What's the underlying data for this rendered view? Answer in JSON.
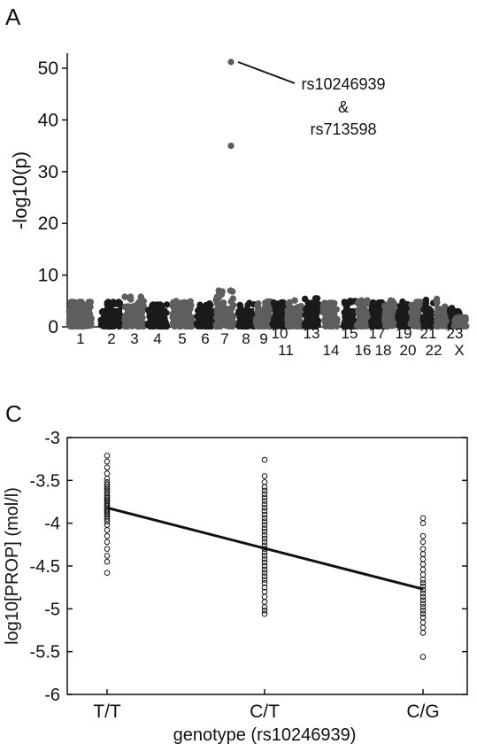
{
  "panels": {
    "a_label": "A",
    "c_label": "C"
  },
  "chart_data": [
    {
      "type": "scatter",
      "panel": "A",
      "title": "",
      "xlabel": "",
      "ylabel": "-log10(p)",
      "ylim": [
        0,
        55
      ],
      "yticks": [
        0,
        10,
        20,
        30,
        40,
        50
      ],
      "grid": false,
      "chromosomes": [
        "1",
        "2",
        "3",
        "4",
        "5",
        "6",
        "7",
        "8",
        "9",
        "10",
        "11",
        "13",
        "14",
        "15",
        "16",
        "17",
        "18",
        "19",
        "20",
        "21",
        "22",
        "23",
        "X"
      ],
      "chromosome_peaks": [
        4.8,
        4.8,
        5.8,
        4.3,
        5.0,
        4.5,
        7.0,
        4.6,
        4.9,
        4.7,
        5.2,
        5.5,
        4.6,
        5.0,
        5.1,
        4.7,
        5.1,
        4.9,
        4.8,
        5.2,
        5.4,
        3.8,
        1.8
      ],
      "highlighted_points": [
        {
          "chromosome": "7",
          "y": 51.2
        },
        {
          "chromosome": "7",
          "y": 35.0
        }
      ],
      "annotation": {
        "line1": "rs10246939",
        "line2": "&",
        "line3": "rs713598"
      },
      "colors": {
        "dark": "#1a1a1a",
        "light": "#5e5e5e",
        "highlight": "#5a5a5a"
      }
    },
    {
      "type": "scatter",
      "panel": "C",
      "title": "",
      "xlabel": "genotype (rs10246939)",
      "ylabel": "log10[PROP] (mol/l)",
      "categories": [
        "T/T",
        "C/T",
        "C/G"
      ],
      "ylim": [
        -6,
        -3
      ],
      "yticks": [
        -6,
        -5.5,
        -5,
        -4.5,
        -4,
        -3.5,
        -3
      ],
      "ytick_labels": [
        "-6",
        "-5.5",
        "-5",
        "-4.5",
        "-4",
        "-3.5",
        "-3"
      ],
      "grid": false,
      "series": [
        {
          "category": "T/T",
          "values": [
            -3.21,
            -3.28,
            -3.35,
            -3.42,
            -3.48,
            -3.52,
            -3.55,
            -3.58,
            -3.6,
            -3.62,
            -3.65,
            -3.68,
            -3.7,
            -3.72,
            -3.74,
            -3.76,
            -3.78,
            -3.8,
            -3.82,
            -3.84,
            -3.86,
            -3.88,
            -3.9,
            -3.92,
            -3.95,
            -3.98,
            -4.02,
            -4.08,
            -4.15,
            -4.22,
            -4.3,
            -4.38,
            -4.45,
            -4.58
          ]
        },
        {
          "category": "C/T",
          "values": [
            -3.26,
            -3.45,
            -3.52,
            -3.58,
            -3.62,
            -3.66,
            -3.7,
            -3.74,
            -3.78,
            -3.82,
            -3.86,
            -3.9,
            -3.94,
            -3.98,
            -4.02,
            -4.06,
            -4.1,
            -4.14,
            -4.18,
            -4.22,
            -4.26,
            -4.3,
            -4.34,
            -4.38,
            -4.42,
            -4.46,
            -4.5,
            -4.54,
            -4.58,
            -4.62,
            -4.66,
            -4.7,
            -4.75,
            -4.8,
            -4.86,
            -4.92,
            -4.98,
            -5.02,
            -5.06
          ]
        },
        {
          "category": "C/G",
          "values": [
            -3.94,
            -4.0,
            -4.15,
            -4.22,
            -4.3,
            -4.36,
            -4.42,
            -4.48,
            -4.54,
            -4.6,
            -4.66,
            -4.7,
            -4.74,
            -4.78,
            -4.82,
            -4.86,
            -4.9,
            -4.94,
            -4.98,
            -5.02,
            -5.06,
            -5.1,
            -5.16,
            -5.22,
            -5.28,
            -5.56
          ]
        }
      ],
      "regression_line": {
        "start": -3.82,
        "end": -4.77
      },
      "colors": {
        "marker": "#111111",
        "line": "#111111"
      }
    }
  ]
}
